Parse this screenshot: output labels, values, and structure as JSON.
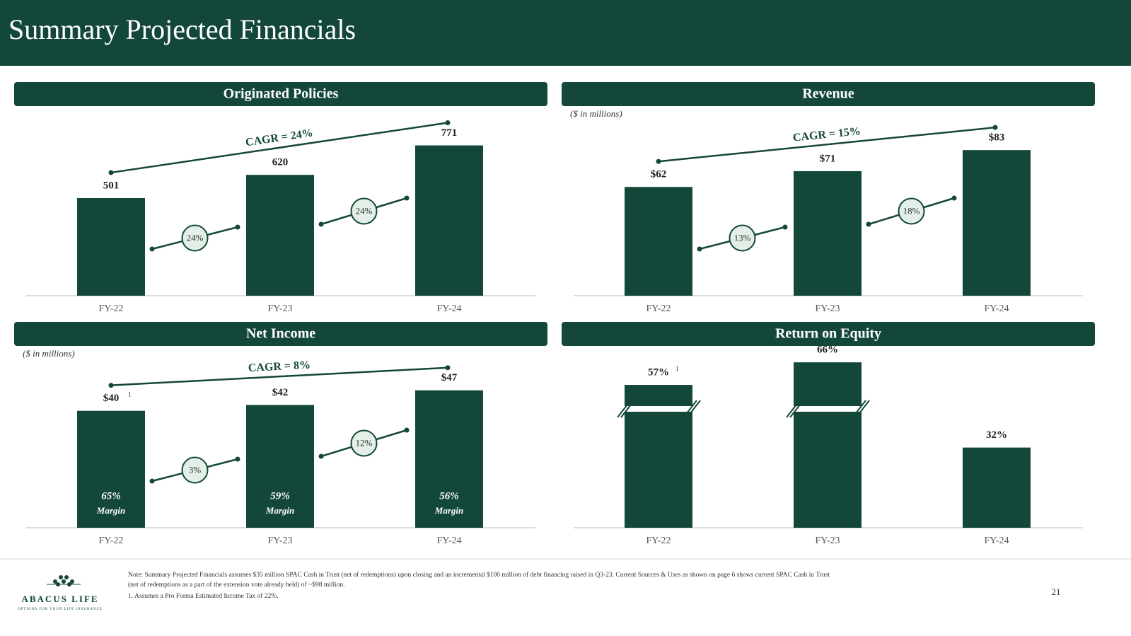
{
  "header": {
    "title": "Summary Projected Financials"
  },
  "chart_data": [
    {
      "type": "bar",
      "title": "Originated Policies",
      "categories": [
        "FY-22",
        "FY-23",
        "FY-24"
      ],
      "values": [
        501,
        620,
        771
      ],
      "color": "#13473a",
      "ylim": [
        0,
        900
      ],
      "cagr_label": "CAGR = 24%",
      "growth_labels": [
        "24%",
        "24%"
      ]
    },
    {
      "type": "bar",
      "title": "Revenue",
      "subtitle": "($ in millions)",
      "categories": [
        "FY-22",
        "FY-23",
        "FY-24"
      ],
      "values": [
        62,
        71,
        83
      ],
      "value_labels": [
        "$62",
        "$71",
        "$83"
      ],
      "color": "#13473a",
      "ylim": [
        0,
        100
      ],
      "cagr_label": "CAGR = 15%",
      "growth_labels": [
        "13%",
        "18%"
      ]
    },
    {
      "type": "bar",
      "title": "Net Income",
      "subtitle": "($ in millions)",
      "categories": [
        "FY-22",
        "FY-23",
        "FY-24"
      ],
      "values": [
        40,
        42,
        47
      ],
      "value_labels": [
        "$40",
        "$42",
        "$47"
      ],
      "color": "#13473a",
      "ylim": [
        0,
        60
      ],
      "cagr_label": "CAGR = 8%",
      "growth_labels": [
        "3%",
        "12%"
      ],
      "margins": [
        "65%",
        "59%",
        "56%"
      ],
      "margin_label": "Margin",
      "annotations": [
        {
          "category": "FY-22",
          "text": "1"
        }
      ]
    },
    {
      "type": "bar",
      "title": "Return on Equity",
      "categories": [
        "FY-22",
        "FY-23",
        "FY-24"
      ],
      "values": [
        57,
        66,
        32
      ],
      "value_labels": [
        "57%",
        "66%",
        "32%"
      ],
      "color": "#13473a",
      "ylim": [
        0,
        70
      ],
      "axis_break": true,
      "annotations": [
        {
          "category": "FY-22",
          "text": "1"
        }
      ]
    }
  ],
  "footer": {
    "note": [
      "Note: Summary Projected Financials assumes $35 million SPAC Cash in Trust (net of redemptions) upon closing and an incremental $100 million of debt financing raised in Q3-23. Current Sources & Uses as shown on page 6 shows current SPAC Cash in Trust",
      "(net of redemptions as a part of the extension vote already held) of ~$98 million."
    ],
    "footnotes": [
      "1.   Assumes a Pro Forma Estimated Income Tax of 22%."
    ],
    "page_number": "21",
    "logo": {
      "name": "ABACUS LIFE",
      "tagline": "OPTIONS FOR YOUR LIFE INSURANCE"
    }
  }
}
